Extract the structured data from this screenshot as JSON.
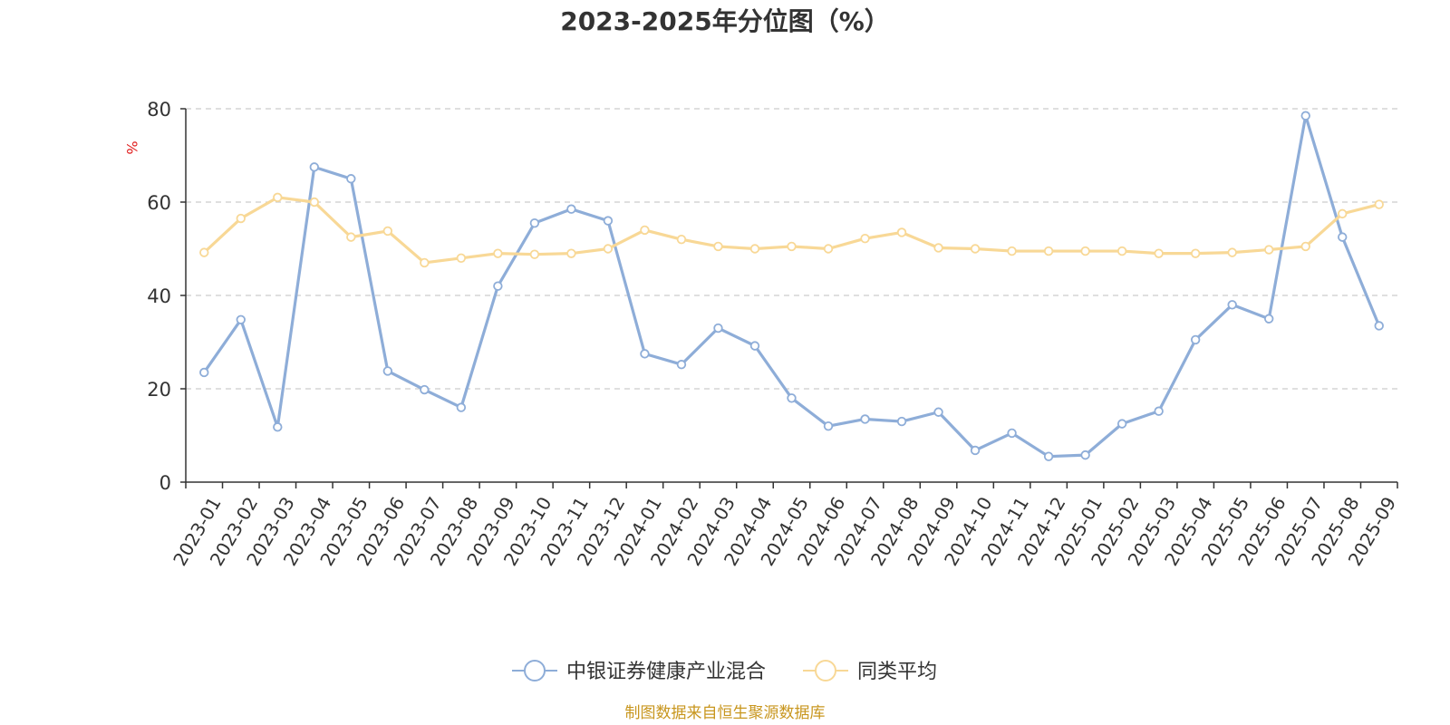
{
  "chart_data": {
    "type": "line",
    "title": "2023-2025年分位图（%）",
    "ylabel": "%",
    "xlabel": "",
    "ylim": [
      0,
      80
    ],
    "yticks": [
      0,
      20,
      40,
      60,
      80
    ],
    "grid": true,
    "legend_position": "bottom",
    "categories": [
      "2023-01",
      "2023-02",
      "2023-03",
      "2023-04",
      "2023-05",
      "2023-06",
      "2023-07",
      "2023-08",
      "2023-09",
      "2023-10",
      "2023-11",
      "2023-12",
      "2024-01",
      "2024-02",
      "2024-03",
      "2024-04",
      "2024-05",
      "2024-06",
      "2024-07",
      "2024-08",
      "2024-09",
      "2024-10",
      "2024-11",
      "2024-12",
      "2025-01",
      "2025-02",
      "2025-03",
      "2025-04",
      "2025-05",
      "2025-06",
      "2025-07",
      "2025-08",
      "2025-09"
    ],
    "series": [
      {
        "name": "中银证券健康产业混合",
        "color": "#8eadd8",
        "values": [
          23.5,
          34.8,
          11.8,
          67.5,
          65.0,
          23.8,
          19.8,
          16.0,
          42.0,
          55.5,
          58.5,
          56.0,
          27.5,
          25.2,
          33.0,
          29.2,
          18.0,
          12.0,
          13.5,
          13.0,
          15.0,
          6.8,
          10.5,
          5.5,
          5.8,
          12.5,
          15.2,
          30.5,
          38.0,
          35.0,
          78.5,
          52.5,
          33.5
        ]
      },
      {
        "name": "同类平均",
        "color": "#f8d896",
        "values": [
          49.2,
          56.5,
          61.0,
          60.0,
          52.5,
          53.8,
          47.0,
          48.0,
          49.0,
          48.8,
          49.0,
          50.0,
          54.0,
          52.0,
          50.5,
          50.0,
          50.5,
          50.0,
          52.2,
          53.5,
          50.2,
          50.0,
          49.5,
          49.5,
          49.5,
          49.5,
          49.0,
          49.0,
          49.2,
          49.8,
          50.5,
          57.5,
          59.5
        ]
      }
    ]
  },
  "source_text": "制图数据来自恒生聚源数据库",
  "colors": {
    "axis": "#333333",
    "grid": "#cccccc",
    "unit": "#e02020",
    "source": "#c8961e"
  }
}
